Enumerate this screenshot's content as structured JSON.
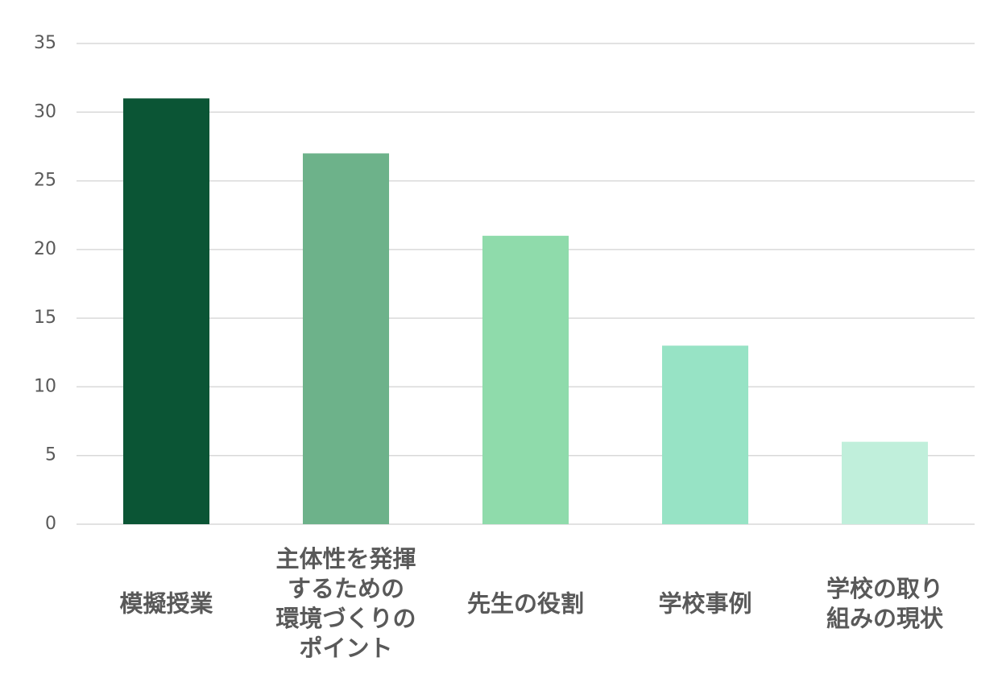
{
  "chart_data": {
    "type": "bar",
    "categories": [
      "模擬授業",
      "主体性を発揮\nするための\n環境づくりの\nポイント",
      "先生の役割",
      "学校事例",
      "学校の取り\n組みの現状"
    ],
    "values": [
      31,
      27,
      21,
      13,
      6
    ],
    "colors": [
      "#0b5535",
      "#6db28a",
      "#8fdbab",
      "#97e3c5",
      "#c0efdb"
    ],
    "ylim": [
      0,
      35
    ],
    "yticks": [
      0,
      5,
      10,
      15,
      20,
      25,
      30,
      35
    ],
    "grid": true
  }
}
